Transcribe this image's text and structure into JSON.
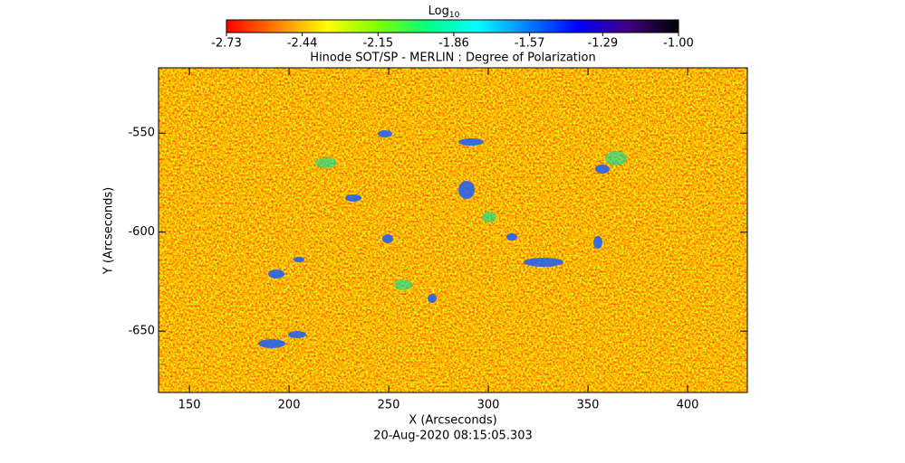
{
  "chart_data": {
    "type": "image",
    "title": "Hinode SOT/SP - MERLIN : Degree of Polarization",
    "x_label": "X (Arcseconds)",
    "y_label": "Y (Arcseconds)",
    "timestamp": "20-Aug-2020 08:15:05.303",
    "xlim": [
      134.5,
      430
    ],
    "ylim": [
      -681,
      -517
    ],
    "xticks": [
      150,
      200,
      250,
      300,
      350,
      400
    ],
    "yticks": [
      -550,
      -600,
      -650
    ],
    "colorbar": {
      "label": "Log",
      "label_subscript": "10",
      "lim": [
        -2.73,
        -1.0
      ],
      "ticks": [
        -2.73,
        -2.44,
        -2.15,
        -1.86,
        -1.57,
        -1.29,
        {
          "value": -1.0,
          "label": "-1.00"
        }
      ],
      "colormap": [
        "#ff0000",
        "#ff8000",
        "#ffff00",
        "#80ff00",
        "#00ff80",
        "#00ffff",
        "#0080ff",
        "#0000ff",
        "#400080",
        "#000000"
      ]
    }
  }
}
